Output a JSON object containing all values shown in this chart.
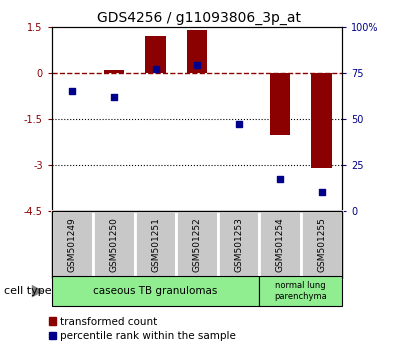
{
  "title": "GDS4256 / g11093806_3p_at",
  "samples": [
    "GSM501249",
    "GSM501250",
    "GSM501251",
    "GSM501252",
    "GSM501253",
    "GSM501254",
    "GSM501255"
  ],
  "red_bars": [
    -0.03,
    0.1,
    1.2,
    1.4,
    -0.03,
    -2.05,
    -3.1
  ],
  "blue_pct": [
    65,
    62,
    77,
    79,
    47,
    17,
    10
  ],
  "ylim_left": [
    -4.5,
    1.5
  ],
  "yticks_left": [
    1.5,
    0,
    -1.5,
    -3,
    -4.5
  ],
  "ytick_labels_left": [
    "1.5",
    "0",
    "-1.5",
    "-3",
    "-4.5"
  ],
  "yticks_right_pct": [
    100,
    75,
    50,
    25,
    0
  ],
  "bar_color": "#8B0000",
  "blue_color": "#00008B",
  "zero_line_color": "#8B0000",
  "dotted_line_color": "#000000",
  "legend_red_label": "transformed count",
  "legend_blue_label": "percentile rank within the sample",
  "cell_type_label": "cell type",
  "cell_group1_label": "caseous TB granulomas",
  "cell_group2_label": "normal lung\nparenchyma",
  "cell_group1_n": 5,
  "cell_group2_n": 2,
  "cell_color": "#90EE90",
  "sample_box_color": "#c8c8c8"
}
